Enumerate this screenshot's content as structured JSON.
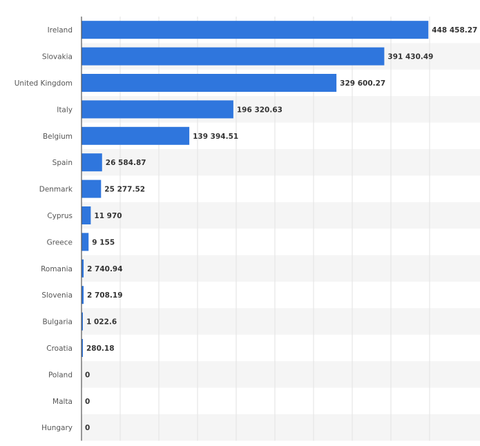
{
  "chart_data": {
    "type": "bar",
    "orientation": "horizontal",
    "categories": [
      "Ireland",
      "Slovakia",
      "United Kingdom",
      "Italy",
      "Belgium",
      "Spain",
      "Denmark",
      "Cyprus",
      "Greece",
      "Romania",
      "Slovenia",
      "Bulgaria",
      "Croatia",
      "Poland",
      "Malta",
      "Hungary"
    ],
    "values": [
      448458.27,
      391430.49,
      329600.27,
      196320.63,
      139394.51,
      26584.87,
      25277.52,
      11970,
      9155,
      2740.94,
      2708.19,
      1022.6,
      280.18,
      0,
      0,
      0
    ],
    "value_labels": [
      "448 458.27",
      "391 430.49",
      "329 600.27",
      "196 320.63",
      "139 394.51",
      "26 584.87",
      "25 277.52",
      "11 970",
      "9 155",
      "2 740.94",
      "2 708.19",
      "1 022.6",
      "280.18",
      "0",
      "0",
      "0"
    ],
    "title": "",
    "xlabel": "",
    "ylabel": "",
    "xlim": [
      0,
      450000
    ],
    "grid": true,
    "legend": "none",
    "bar_color": "#2f76dd",
    "band_color": "#f5f5f5",
    "grid_color": "#e2e2e2",
    "axis_color": "#555555"
  }
}
